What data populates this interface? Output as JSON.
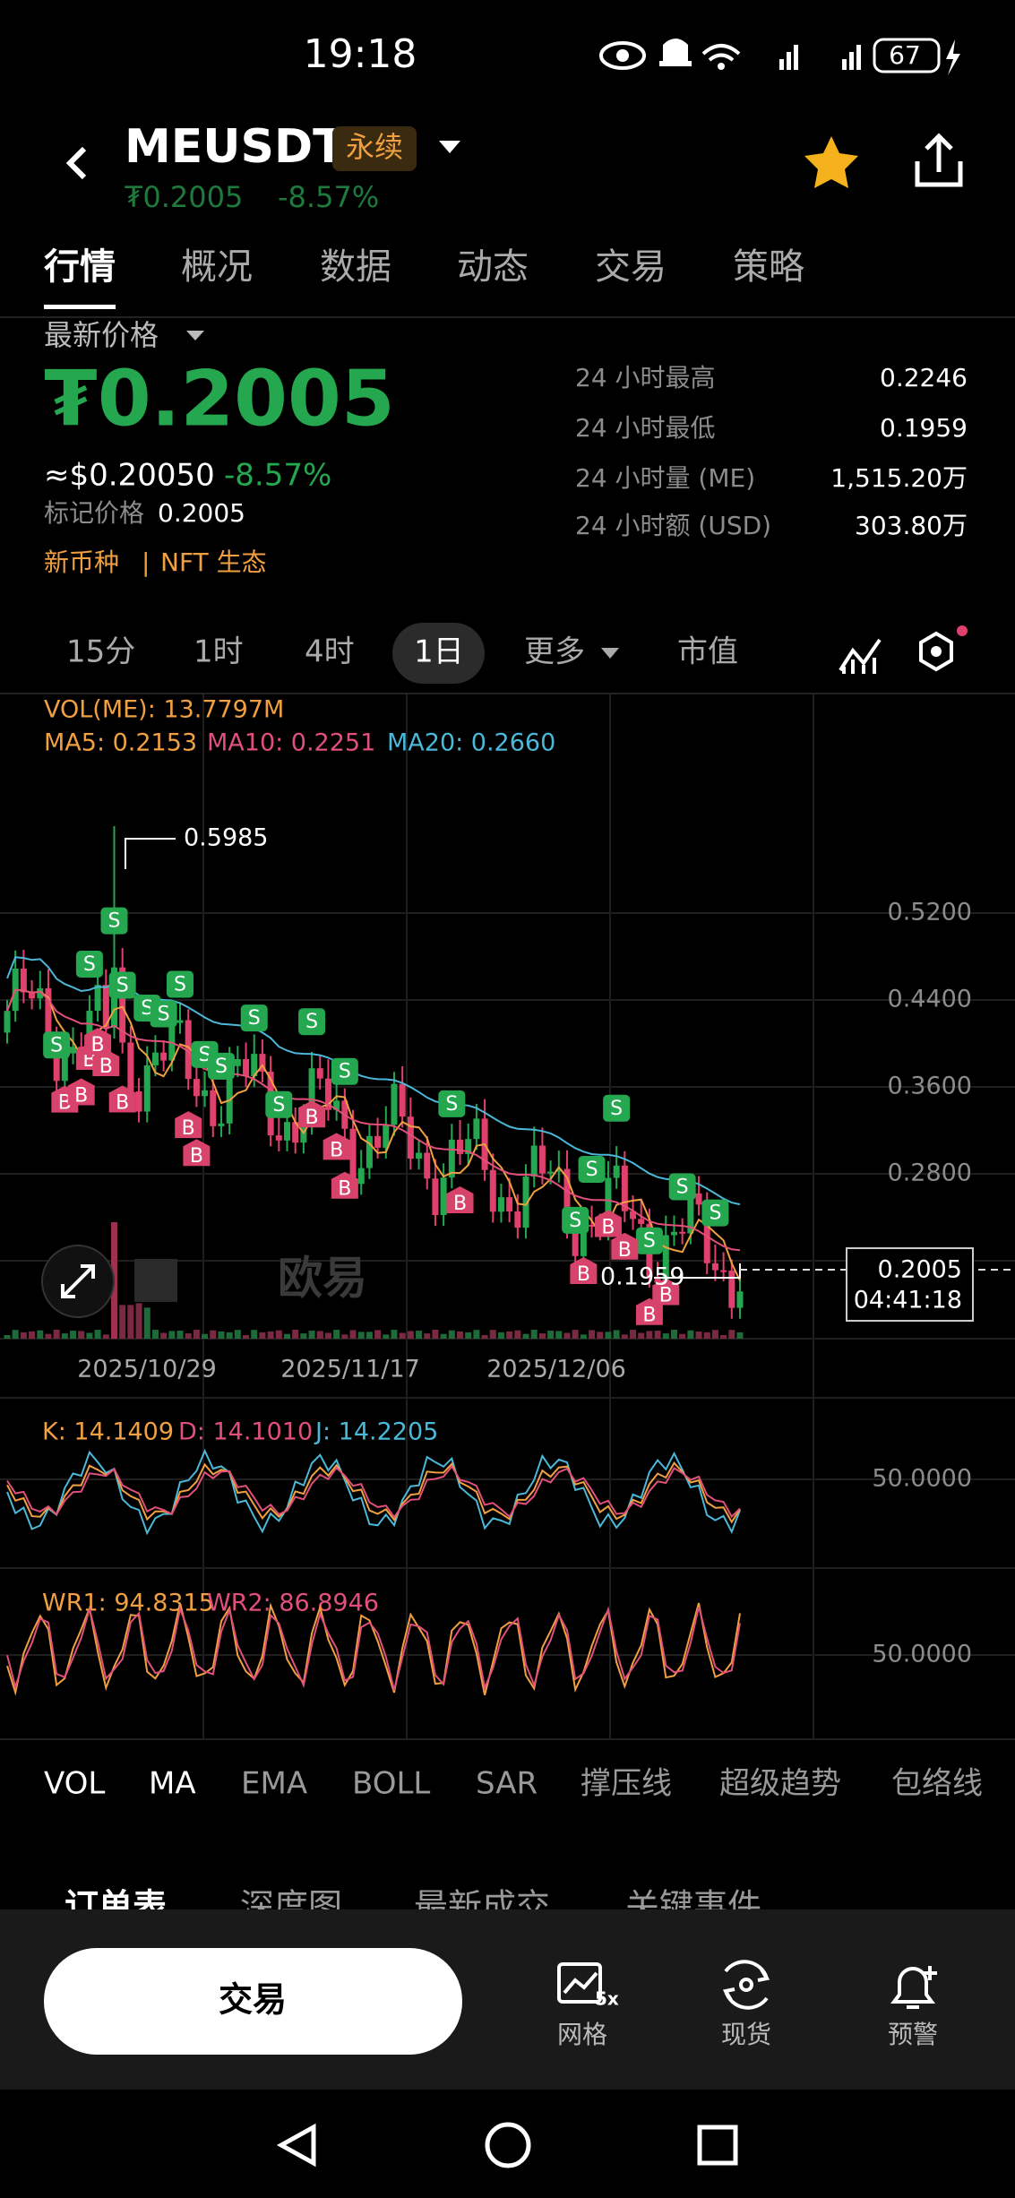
{
  "status_bar": {
    "time": "19:18",
    "battery": "67"
  },
  "header": {
    "symbol": "MEUSDT",
    "badge": "永续",
    "price": "₮0.2005",
    "change": "-8.57%"
  },
  "tabs": [
    "行情",
    "概况",
    "数据",
    "动态",
    "交易",
    "策略"
  ],
  "price_panel": {
    "label": "最新价格",
    "price": "₮0.2005",
    "usd": "≈$0.20050",
    "change": "-8.57%",
    "mark_label": "标记价格",
    "mark_price": "0.2005",
    "tags": [
      "新币种",
      "NFT 生态"
    ],
    "stats": [
      {
        "label": "24 小时最高",
        "value": "0.2246"
      },
      {
        "label": "24 小时最低",
        "value": "0.1959"
      },
      {
        "label": "24 小时量 (ME)",
        "value": "1,515.20万"
      },
      {
        "label": "24 小时额 (USD)",
        "value": "303.80万"
      }
    ]
  },
  "intervals": [
    "15分",
    "1时",
    "4时",
    "1日",
    "更多",
    "市值"
  ],
  "chart": {
    "vol": "VOL(ME): 13.7797M",
    "ma": [
      "MA5: 0.2153",
      "MA10: 0.2251",
      "MA20: 0.2660"
    ],
    "price_ticks": [
      "0.5200",
      "0.4400",
      "0.3600",
      "0.2800"
    ],
    "high_label": "0.5985",
    "low_label": "0.1959",
    "last_price": "0.2005",
    "countdown": "04:41:18",
    "dates": [
      "2025/10/29",
      "2025/11/17",
      "2025/12/06"
    ],
    "watermark": "欧易",
    "markers": {
      "buy": "B",
      "sell": "S"
    }
  },
  "kdj": {
    "k": "K: 14.1409",
    "d": "D: 14.1010",
    "j": "J: 14.2205",
    "tick": "50.0000"
  },
  "wr": {
    "wr1": "WR1: 94.8315",
    "wr2": "WR2: 86.8946",
    "tick": "50.0000"
  },
  "indicators": [
    "VOL",
    "MA",
    "EMA",
    "BOLL",
    "SAR",
    "撑压线",
    "超级趋势",
    "包络线"
  ],
  "order_tabs": [
    "订单表",
    "深度图",
    "最新成交",
    "关键事件"
  ],
  "bottom": {
    "trade": "交易",
    "grid_badge": "5x",
    "actions": [
      "网格",
      "现货",
      "预警"
    ]
  }
}
